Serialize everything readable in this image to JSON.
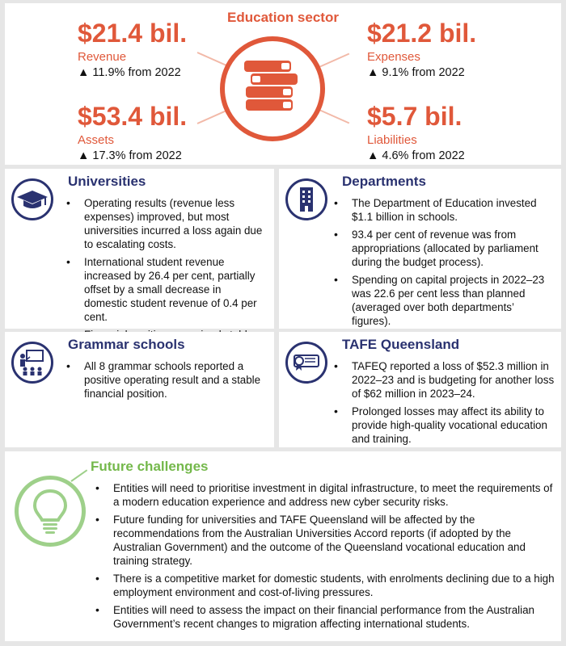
{
  "sector": {
    "title": "Education sector",
    "stats": {
      "revenue": {
        "value": "$21.4 bil.",
        "label": "Revenue",
        "change": "▲ 11.9% from 2022"
      },
      "expenses": {
        "value": "$21.2 bil.",
        "label": "Expenses",
        "change": "▲ 9.1% from 2022"
      },
      "assets": {
        "value": "$53.4 bil.",
        "label": "Assets",
        "change": "▲ 17.3% from 2022"
      },
      "liabilities": {
        "value": "$5.7 bil.",
        "label": "Liabilities",
        "change": "▲ 4.6% from 2022"
      }
    },
    "center_icon": "books-icon"
  },
  "universities": {
    "title": "Universities",
    "icon": "graduation-cap-icon",
    "bullets": [
      "Operating results (revenue less expenses) improved, but most universities incurred a loss again due to escalating costs.",
      "International student revenue increased by 26.4 per cent, partially offset by a small decrease in domestic student revenue of 0.4 per cent.",
      "Financial positions remained stable."
    ]
  },
  "departments": {
    "title": "Departments",
    "icon": "building-icon",
    "bullets": [
      "The Department of Education invested $1.1 billion in schools.",
      "93.4 per cent of revenue was from appropriations (allocated by parliament during the budget process).",
      "Spending on capital projects in 2022–23 was 22.6 per cent less than planned (averaged over both departments’ figures)."
    ]
  },
  "grammar": {
    "title": "Grammar schools",
    "icon": "classroom-icon",
    "bullets": [
      "All 8 grammar schools reported a positive operating result and a stable financial position."
    ]
  },
  "tafe": {
    "title": "TAFE Queensland",
    "icon": "diploma-icon",
    "bullets": [
      "TAFEQ reported a loss of $52.3 million in 2022–23 and is budgeting for another loss of $62 million in 2023–24.",
      "Prolonged losses may affect its ability to provide high-quality vocational education and training."
    ]
  },
  "future": {
    "title": "Future challenges",
    "icon": "lightbulb-icon",
    "bullets": [
      "Entities will need to prioritise investment in digital infrastructure, to meet the requirements of a modern education experience and address new cyber security risks.",
      "Future funding for universities and TAFE Queensland will be affected by the recommendations from the Australian Universities Accord reports (if adopted by the Australian Government) and the outcome of the Queensland vocational education and training strategy.",
      "There is a competitive market for domestic students, with enrolments declining due to a high employment environment and cost-of-living pressures.",
      "Entities will need to assess the impact on their financial performance from the Australian Government’s recent changes to migration affecting international students."
    ]
  },
  "colors": {
    "accent_orange": "#e0583a",
    "navy": "#2a3270",
    "green": "#74b84b"
  }
}
